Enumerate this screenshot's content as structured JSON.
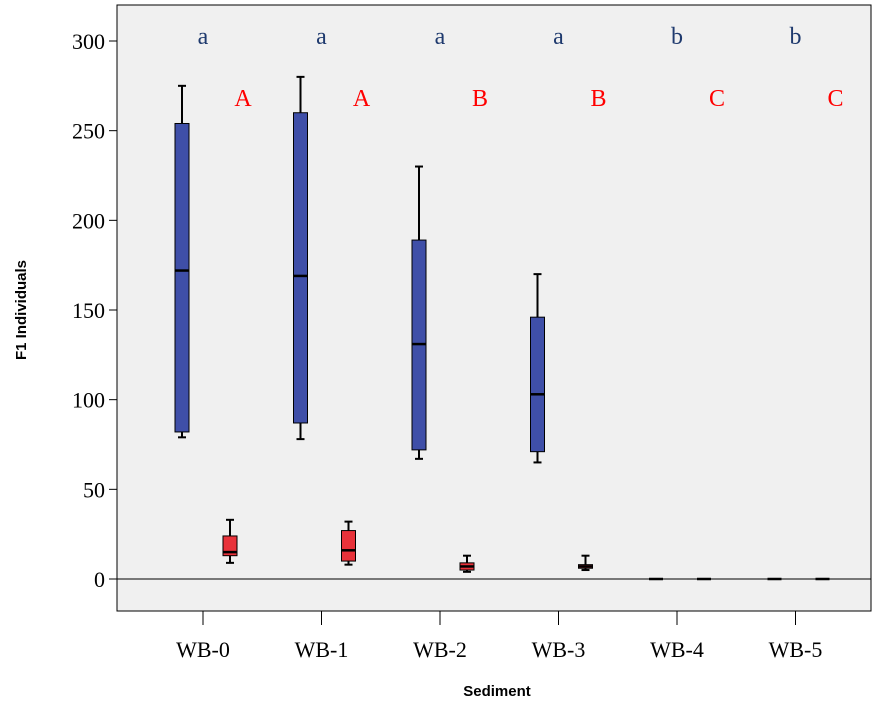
{
  "chart_data": {
    "type": "box",
    "title": "",
    "xlabel": "Sediment",
    "ylabel": "F1 Individuals",
    "ylim": [
      0,
      310
    ],
    "yticks": [
      0,
      50,
      100,
      150,
      200,
      250,
      300
    ],
    "grid": false,
    "legend": "none",
    "reference_line_y": 0,
    "categories": [
      "WB-0",
      "WB-1",
      "WB-2",
      "WB-3",
      "WB-4",
      "WB-5"
    ],
    "series": [
      {
        "color": "#3f4fa8",
        "boxes": [
          {
            "min": 79,
            "q1": 82,
            "median": 172,
            "q3": 254,
            "max": 275
          },
          {
            "min": 78,
            "q1": 87,
            "median": 169,
            "q3": 260,
            "max": 280
          },
          {
            "min": 67,
            "q1": 72,
            "median": 131,
            "q3": 189,
            "max": 230
          },
          {
            "min": 65,
            "q1": 71,
            "median": 103,
            "q3": 146,
            "max": 170
          },
          {
            "min": 0,
            "q1": 0,
            "median": 0,
            "q3": 0,
            "max": 0
          },
          {
            "min": 0,
            "q1": 0,
            "median": 0,
            "q3": 0,
            "max": 0
          }
        ],
        "letters": [
          "a",
          "a",
          "a",
          "a",
          "b",
          "b"
        ],
        "letter_color": "#1f3a6e"
      },
      {
        "color": "#e8323a",
        "boxes": [
          {
            "min": 9,
            "q1": 13,
            "median": 15,
            "q3": 24,
            "max": 33
          },
          {
            "min": 8,
            "q1": 10,
            "median": 16,
            "q3": 27,
            "max": 32
          },
          {
            "min": 4,
            "q1": 5,
            "median": 7,
            "q3": 9,
            "max": 13
          },
          {
            "min": 5,
            "q1": 6,
            "median": 7,
            "q3": 8,
            "max": 13
          },
          {
            "min": 0,
            "q1": 0,
            "median": 0,
            "q3": 0,
            "max": 0
          },
          {
            "min": 0,
            "q1": 0,
            "median": 0,
            "q3": 0,
            "max": 0
          }
        ],
        "letters": [
          "A",
          "A",
          "B",
          "B",
          "C",
          "C"
        ],
        "letter_color": "#ff0000"
      }
    ]
  },
  "colors": {
    "plot_background": "#f0f0f0",
    "axis": "#000000"
  }
}
